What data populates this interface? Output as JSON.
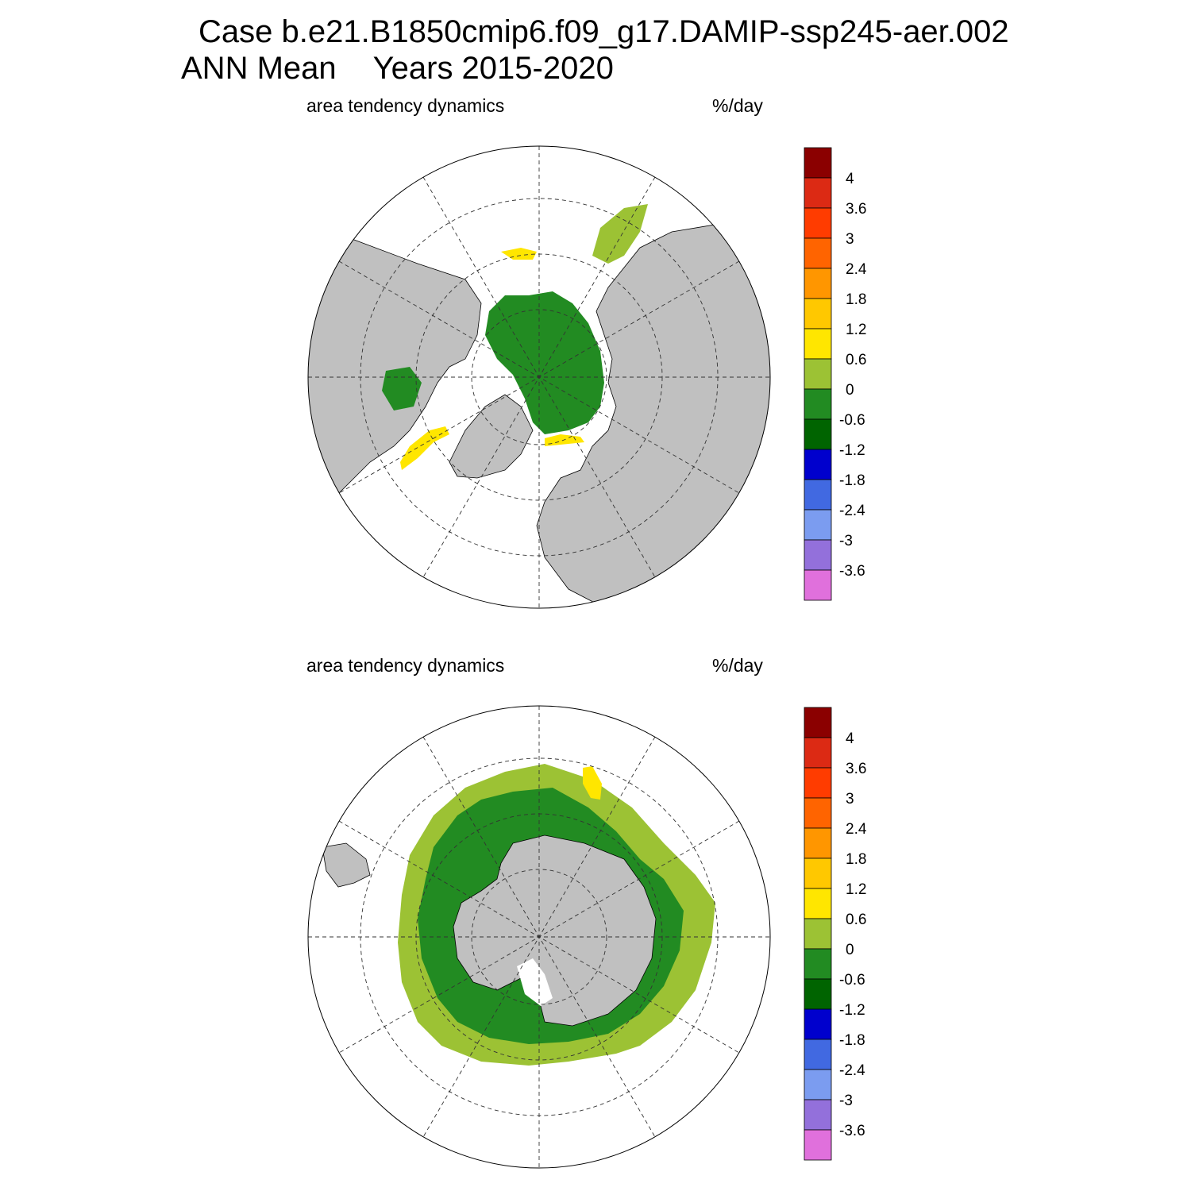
{
  "title": {
    "line1": "Case b.e21.B1850cmip6.f09_g17.DAMIP-ssp245-aer.002",
    "line2_season": "ANN Mean",
    "line2_years": "Years 2015-2020"
  },
  "panels": [
    {
      "id": "north",
      "variable": "area tendency dynamics",
      "units": "%/day",
      "hemisphere": "north"
    },
    {
      "id": "south",
      "variable": "area tendency dynamics",
      "units": "%/day",
      "hemisphere": "south"
    }
  ],
  "colorbar": {
    "labels": [
      "4",
      "3.6",
      "3",
      "2.4",
      "1.8",
      "1.2",
      "0.6",
      "0",
      "-0.6",
      "-1.2",
      "-1.8",
      "-2.4",
      "-3",
      "-3.6"
    ],
    "colors": [
      "#8b0000",
      "#dc2a14",
      "#ff3c00",
      "#ff6400",
      "#ff9600",
      "#ffc800",
      "#ffe600",
      "#9cc234",
      "#228b22",
      "#006400",
      "#0000cd",
      "#4169e1",
      "#7b9cf0",
      "#9370db",
      "#e070dc"
    ]
  },
  "colors": {
    "land": "#c0c0c0",
    "ocean": "#ffffff",
    "grid": "#333333"
  }
}
